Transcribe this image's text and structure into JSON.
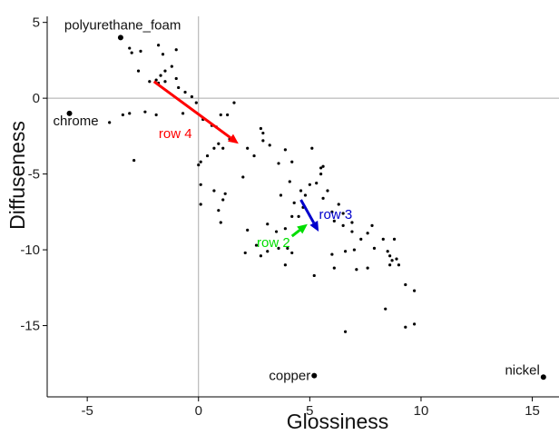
{
  "chart_data": {
    "type": "scatter",
    "title": "",
    "xlabel": "Glossiness",
    "ylabel": "Diffuseness",
    "xlim": [
      -6.8,
      16.2
    ],
    "ylim": [
      -19.7,
      5.4
    ],
    "xticks": [
      -5,
      0,
      5,
      10,
      15
    ],
    "yticks": [
      5,
      0,
      -5,
      -10,
      -15
    ],
    "zero_lines": true,
    "points": [
      [
        -3.1,
        3.3
      ],
      [
        -3.0,
        3.0
      ],
      [
        -2.6,
        3.1
      ],
      [
        -2.7,
        1.8
      ],
      [
        -1.8,
        3.5
      ],
      [
        -1.6,
        2.9
      ],
      [
        -1.0,
        3.2
      ],
      [
        -1.2,
        2.1
      ],
      [
        -1.5,
        1.8
      ],
      [
        -1.7,
        1.5
      ],
      [
        -1.9,
        1.2
      ],
      [
        -2.2,
        1.1
      ],
      [
        -1.8,
        1.0
      ],
      [
        -1.5,
        1.1
      ],
      [
        -1.0,
        1.3
      ],
      [
        -0.9,
        0.7
      ],
      [
        -0.6,
        0.4
      ],
      [
        -0.3,
        0.1
      ],
      [
        -0.1,
        -0.3
      ],
      [
        -3.4,
        -1.1
      ],
      [
        -3.1,
        -1.0
      ],
      [
        -4.0,
        -1.6
      ],
      [
        -2.4,
        -0.9
      ],
      [
        -1.9,
        -1.1
      ],
      [
        -0.7,
        -1.0
      ],
      [
        0.2,
        -1.4
      ],
      [
        0.6,
        -1.8
      ],
      [
        1.6,
        -0.3
      ],
      [
        1.3,
        -1.1
      ],
      [
        1.0,
        -1.1
      ],
      [
        0.8,
        -1.9
      ],
      [
        0.9,
        -3.0
      ],
      [
        0.7,
        -3.3
      ],
      [
        1.1,
        -3.3
      ],
      [
        1.4,
        -2.7
      ],
      [
        -2.9,
        -4.1
      ],
      [
        0.4,
        -3.8
      ],
      [
        0.0,
        -4.4
      ],
      [
        0.1,
        -4.2
      ],
      [
        0.1,
        -5.7
      ],
      [
        0.7,
        -6.1
      ],
      [
        1.1,
        -6.7
      ],
      [
        0.9,
        -7.4
      ],
      [
        1.2,
        -6.3
      ],
      [
        0.1,
        -7.0
      ],
      [
        1.0,
        -8.2
      ],
      [
        2.0,
        -5.2
      ],
      [
        2.2,
        -3.3
      ],
      [
        2.5,
        -3.8
      ],
      [
        2.9,
        -2.3
      ],
      [
        2.8,
        -2.0
      ],
      [
        2.9,
        -2.8
      ],
      [
        3.2,
        -3.1
      ],
      [
        3.6,
        -4.3
      ],
      [
        3.9,
        -3.4
      ],
      [
        4.1,
        -5.5
      ],
      [
        4.2,
        -4.2
      ],
      [
        3.7,
        -6.4
      ],
      [
        4.3,
        -6.9
      ],
      [
        4.6,
        -6.1
      ],
      [
        5.0,
        -5.7
      ],
      [
        4.8,
        -6.4
      ],
      [
        5.1,
        -3.3
      ],
      [
        5.5,
        -4.6
      ],
      [
        5.6,
        -4.5
      ],
      [
        5.3,
        -5.6
      ],
      [
        5.5,
        -5.0
      ],
      [
        5.6,
        -6.6
      ],
      [
        5.8,
        -6.1
      ],
      [
        6.3,
        -7.0
      ],
      [
        6.0,
        -7.5
      ],
      [
        6.1,
        -8.1
      ],
      [
        6.5,
        -7.6
      ],
      [
        6.5,
        -8.4
      ],
      [
        6.9,
        -8.2
      ],
      [
        6.9,
        -8.8
      ],
      [
        6.6,
        -10.1
      ],
      [
        6.0,
        -10.3
      ],
      [
        7.0,
        -10.0
      ],
      [
        7.3,
        -9.3
      ],
      [
        7.6,
        -8.9
      ],
      [
        7.8,
        -8.4
      ],
      [
        7.9,
        -9.9
      ],
      [
        8.3,
        -9.3
      ],
      [
        8.5,
        -10.1
      ],
      [
        8.6,
        -10.4
      ],
      [
        8.7,
        -10.7
      ],
      [
        8.6,
        -11.0
      ],
      [
        8.8,
        -9.3
      ],
      [
        8.9,
        -10.6
      ],
      [
        9.0,
        -11.0
      ],
      [
        7.6,
        -11.2
      ],
      [
        7.1,
        -11.3
      ],
      [
        6.1,
        -11.2
      ],
      [
        5.2,
        -11.7
      ],
      [
        4.2,
        -10.2
      ],
      [
        4.0,
        -9.9
      ],
      [
        3.9,
        -11.0
      ],
      [
        3.9,
        -8.6
      ],
      [
        3.5,
        -8.8
      ],
      [
        3.1,
        -8.3
      ],
      [
        3.1,
        -10.1
      ],
      [
        2.8,
        -10.4
      ],
      [
        2.6,
        -9.7
      ],
      [
        2.1,
        -10.2
      ],
      [
        2.2,
        -8.7
      ],
      [
        3.6,
        -9.9
      ],
      [
        4.2,
        -7.8
      ],
      [
        4.5,
        -7.8
      ],
      [
        4.7,
        -7.2
      ],
      [
        9.3,
        -12.3
      ],
      [
        9.7,
        -12.7
      ],
      [
        8.4,
        -13.9
      ],
      [
        9.3,
        -15.1
      ],
      [
        9.7,
        -14.9
      ],
      [
        6.6,
        -15.4
      ]
    ],
    "labeled_points": [
      {
        "label": "polyurethane_foam",
        "x": -3.5,
        "y": 4.0
      },
      {
        "label": "chrome",
        "x": -5.8,
        "y": -1.0
      },
      {
        "label": "copper",
        "x": 5.2,
        "y": -18.3
      },
      {
        "label": "nickel",
        "x": 15.5,
        "y": -18.4
      }
    ],
    "arrows": [
      {
        "label": "row 4",
        "color": "#ff0000",
        "from": [
          -2.0,
          1.1
        ],
        "to": [
          1.8,
          -3.0
        ]
      },
      {
        "label": "row 3",
        "color": "#0000cc",
        "from": [
          4.6,
          -6.7
        ],
        "to": [
          5.4,
          -8.8
        ]
      },
      {
        "label": "row 2",
        "color": "#00dd00",
        "from": [
          4.2,
          -9.1
        ],
        "to": [
          4.9,
          -8.3
        ]
      }
    ]
  }
}
